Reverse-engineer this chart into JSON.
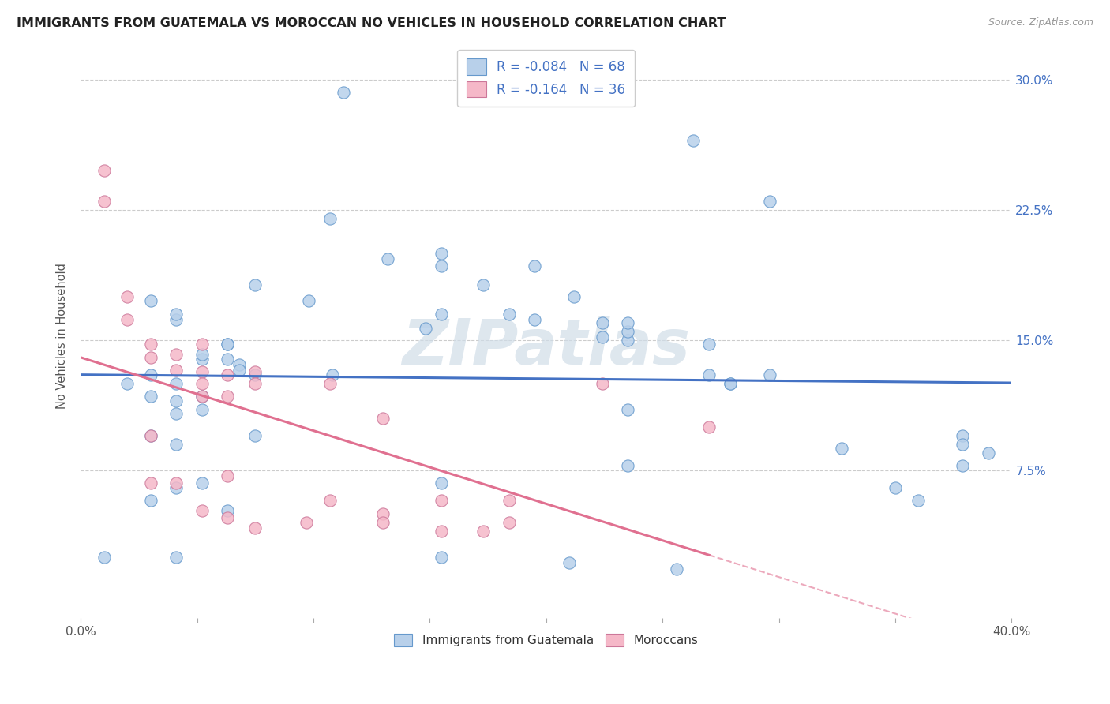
{
  "title": "IMMIGRANTS FROM GUATEMALA VS MOROCCAN NO VEHICLES IN HOUSEHOLD CORRELATION CHART",
  "source": "Source: ZipAtlas.com",
  "ylabel": "No Vehicles in Household",
  "legend_label1": "Immigrants from Guatemala",
  "legend_label2": "Moroccans",
  "r1": "-0.084",
  "n1": "68",
  "r2": "-0.164",
  "n2": "36",
  "color_blue": "#b8d0ea",
  "color_blue_edge": "#6699cc",
  "color_blue_line": "#4472C4",
  "color_pink": "#f5b8c8",
  "color_pink_edge": "#cc7799",
  "color_pink_line": "#e07090",
  "watermark": "ZIPatlas",
  "xlim": [
    0.0,
    0.4
  ],
  "ylim": [
    -0.01,
    0.315
  ],
  "blue_x": [
    0.108,
    0.263,
    0.041,
    0.052,
    0.041,
    0.052,
    0.063,
    0.03,
    0.041,
    0.03,
    0.068,
    0.075,
    0.03,
    0.052,
    0.063,
    0.041,
    0.052,
    0.155,
    0.132,
    0.184,
    0.03,
    0.041,
    0.075,
    0.155,
    0.107,
    0.195,
    0.155,
    0.296,
    0.173,
    0.063,
    0.148,
    0.212,
    0.195,
    0.224,
    0.296,
    0.224,
    0.379,
    0.379,
    0.39,
    0.235,
    0.379,
    0.35,
    0.36,
    0.327,
    0.279,
    0.041,
    0.235,
    0.063,
    0.256,
    0.01,
    0.068,
    0.041,
    0.075,
    0.03,
    0.041,
    0.052,
    0.27,
    0.235,
    0.113,
    0.235,
    0.21,
    0.155,
    0.235,
    0.02,
    0.27,
    0.155,
    0.279,
    0.098
  ],
  "blue_y": [
    0.13,
    0.265,
    0.162,
    0.139,
    0.125,
    0.118,
    0.139,
    0.13,
    0.115,
    0.095,
    0.136,
    0.13,
    0.118,
    0.142,
    0.148,
    0.108,
    0.11,
    0.193,
    0.197,
    0.165,
    0.173,
    0.165,
    0.182,
    0.165,
    0.22,
    0.193,
    0.2,
    0.23,
    0.182,
    0.148,
    0.157,
    0.175,
    0.162,
    0.16,
    0.13,
    0.152,
    0.095,
    0.09,
    0.085,
    0.15,
    0.078,
    0.065,
    0.058,
    0.088,
    0.125,
    0.025,
    0.11,
    0.052,
    0.018,
    0.025,
    0.133,
    0.09,
    0.095,
    0.058,
    0.065,
    0.068,
    0.13,
    0.078,
    0.293,
    0.155,
    0.022,
    0.068,
    0.16,
    0.125,
    0.148,
    0.025,
    0.125,
    0.173
  ],
  "pink_x": [
    0.01,
    0.01,
    0.02,
    0.02,
    0.03,
    0.03,
    0.03,
    0.03,
    0.041,
    0.041,
    0.041,
    0.052,
    0.052,
    0.052,
    0.052,
    0.052,
    0.063,
    0.063,
    0.063,
    0.063,
    0.075,
    0.075,
    0.075,
    0.097,
    0.107,
    0.107,
    0.13,
    0.13,
    0.13,
    0.155,
    0.155,
    0.173,
    0.184,
    0.184,
    0.224,
    0.27
  ],
  "pink_y": [
    0.248,
    0.23,
    0.175,
    0.162,
    0.148,
    0.14,
    0.095,
    0.068,
    0.142,
    0.133,
    0.068,
    0.148,
    0.132,
    0.125,
    0.118,
    0.052,
    0.13,
    0.118,
    0.072,
    0.048,
    0.132,
    0.125,
    0.042,
    0.045,
    0.125,
    0.058,
    0.105,
    0.05,
    0.045,
    0.058,
    0.04,
    0.04,
    0.058,
    0.045,
    0.125,
    0.1
  ]
}
